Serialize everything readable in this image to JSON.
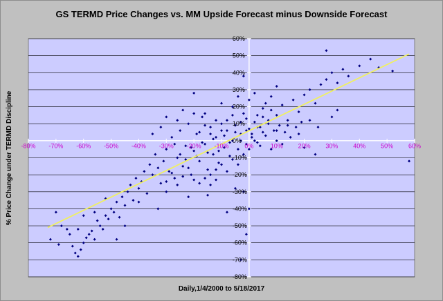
{
  "chart_data": {
    "type": "scatter",
    "title": "GS TERMD Price Changes vs. MM Upside Forecast minus Downside Forecast",
    "xlabel": "Daily,1/4/2000 to 5/18/2017",
    "ylabel": "% Price Change under TERMD Discipline",
    "xlim": [
      -0.8,
      0.6
    ],
    "ylim": [
      -0.8,
      0.6
    ],
    "x_ticks": [
      "-80%",
      "-70%",
      "-60%",
      "-50%",
      "-40%",
      "-30%",
      "-20%",
      "-10%",
      "0%",
      "10%",
      "20%",
      "30%",
      "40%",
      "50%",
      "60%"
    ],
    "y_ticks": [
      "60%",
      "50%",
      "40%",
      "30%",
      "20%",
      "10%",
      "0%",
      "-10%",
      "-20%",
      "-30%",
      "-40%",
      "-50%",
      "-60%",
      "-70%",
      "-80%"
    ],
    "grid": "horizontal",
    "colors": {
      "points": "#000080",
      "trendline": "#f0f060",
      "plot_bg": "#ccccff",
      "frame_bg": "#c0c0c0",
      "x_tick_labels": "#cc00cc"
    },
    "trendline": {
      "x": [
        -0.73,
        0.58
      ],
      "y": [
        -0.51,
        0.51
      ]
    },
    "series": [
      {
        "values": [
          [
            -0.72,
            -0.58
          ],
          [
            -0.7,
            -0.42
          ],
          [
            -0.69,
            -0.61
          ],
          [
            -0.68,
            -0.5
          ],
          [
            -0.66,
            -0.52
          ],
          [
            -0.65,
            -0.55
          ],
          [
            -0.64,
            -0.62
          ],
          [
            -0.63,
            -0.66
          ],
          [
            -0.62,
            -0.68
          ],
          [
            -0.61,
            -0.64
          ],
          [
            -0.6,
            -0.6
          ],
          [
            -0.59,
            -0.57
          ],
          [
            -0.58,
            -0.55
          ],
          [
            -0.57,
            -0.53
          ],
          [
            -0.56,
            -0.58
          ],
          [
            -0.55,
            -0.47
          ],
          [
            -0.54,
            -0.5
          ],
          [
            -0.53,
            -0.52
          ],
          [
            -0.52,
            -0.44
          ],
          [
            -0.51,
            -0.46
          ],
          [
            -0.5,
            -0.4
          ],
          [
            -0.49,
            -0.42
          ],
          [
            -0.48,
            -0.36
          ],
          [
            -0.47,
            -0.45
          ],
          [
            -0.46,
            -0.33
          ],
          [
            -0.45,
            -0.38
          ],
          [
            -0.44,
            -0.3
          ],
          [
            -0.43,
            -0.26
          ],
          [
            -0.42,
            -0.35
          ],
          [
            -0.41,
            -0.22
          ],
          [
            -0.4,
            -0.28
          ],
          [
            -0.39,
            -0.24
          ],
          [
            -0.38,
            -0.18
          ],
          [
            -0.37,
            -0.31
          ],
          [
            -0.36,
            -0.14
          ],
          [
            -0.35,
            -0.2
          ],
          [
            -0.34,
            -0.08
          ],
          [
            -0.33,
            -0.16
          ],
          [
            -0.32,
            -0.25
          ],
          [
            -0.31,
            -0.12
          ],
          [
            -0.3,
            -0.05
          ],
          [
            -0.29,
            -0.18
          ],
          [
            -0.28,
            0.02
          ],
          [
            -0.27,
            -0.22
          ],
          [
            -0.26,
            -0.1
          ],
          [
            -0.25,
            0.06
          ],
          [
            -0.24,
            -0.15
          ],
          [
            -0.23,
            -0.03
          ],
          [
            -0.22,
            0.1
          ],
          [
            -0.21,
            -0.2
          ],
          [
            -0.2,
            -0.06
          ],
          [
            -0.19,
            0.04
          ],
          [
            -0.18,
            -0.12
          ],
          [
            -0.17,
            0.14
          ],
          [
            -0.16,
            -0.02
          ],
          [
            -0.15,
            -0.17
          ],
          [
            -0.14,
            0.08
          ],
          [
            -0.13,
            -0.08
          ],
          [
            -0.12,
            0.02
          ],
          [
            -0.11,
            -0.13
          ],
          [
            -0.1,
            0.06
          ],
          [
            -0.09,
            -0.04
          ],
          [
            -0.08,
            0.12
          ],
          [
            -0.07,
            -0.09
          ],
          [
            -0.06,
            0.0
          ],
          [
            -0.05,
            0.09
          ],
          [
            -0.04,
            -0.05
          ],
          [
            -0.03,
            0.04
          ],
          [
            -0.02,
            0.16
          ],
          [
            -0.01,
            -0.02
          ],
          [
            0.0,
            0.07
          ],
          [
            0.01,
            0.02
          ],
          [
            0.02,
            0.11
          ],
          [
            0.03,
            -0.01
          ],
          [
            0.04,
            0.08
          ],
          [
            0.05,
            0.14
          ],
          [
            0.06,
            0.03
          ],
          [
            0.07,
            0.1
          ],
          [
            0.08,
            0.18
          ],
          [
            0.09,
            0.06
          ],
          [
            0.1,
            0.15
          ],
          [
            0.12,
            0.21
          ],
          [
            0.14,
            0.12
          ],
          [
            0.16,
            0.24
          ],
          [
            0.18,
            0.17
          ],
          [
            0.2,
            0.27
          ],
          [
            0.22,
            0.3
          ],
          [
            0.24,
            0.22
          ],
          [
            0.26,
            0.33
          ],
          [
            0.28,
            0.36
          ],
          [
            0.3,
            0.4
          ],
          [
            0.32,
            0.34
          ],
          [
            0.34,
            0.42
          ],
          [
            0.36,
            0.38
          ],
          [
            0.4,
            0.44
          ],
          [
            0.44,
            0.48
          ],
          [
            0.47,
            0.43
          ],
          [
            0.52,
            0.41
          ],
          [
            0.58,
            -0.12
          ],
          [
            0.28,
            0.53
          ],
          [
            -0.27,
            -0.02
          ],
          [
            -0.25,
            -0.08
          ],
          [
            -0.23,
            -0.11
          ],
          [
            -0.21,
            -0.04
          ],
          [
            -0.19,
            -0.09
          ],
          [
            -0.17,
            -0.01
          ],
          [
            -0.15,
            -0.07
          ],
          [
            -0.13,
            0.01
          ],
          [
            -0.11,
            -0.06
          ],
          [
            -0.09,
            0.03
          ],
          [
            -0.07,
            -0.01
          ],
          [
            -0.05,
            0.05
          ],
          [
            -0.03,
            0.0
          ],
          [
            -0.01,
            0.06
          ],
          [
            0.01,
            0.04
          ],
          [
            0.03,
            0.08
          ],
          [
            0.05,
            0.05
          ],
          [
            0.07,
            0.12
          ],
          [
            -0.18,
            0.05
          ],
          [
            -0.16,
            0.09
          ],
          [
            -0.14,
            -0.2
          ],
          [
            -0.12,
            -0.17
          ],
          [
            -0.1,
            -0.14
          ],
          [
            -0.08,
            -0.18
          ],
          [
            -0.06,
            -0.11
          ],
          [
            -0.04,
            -0.14
          ],
          [
            -0.02,
            -0.08
          ],
          [
            0.0,
            -0.05
          ],
          [
            0.02,
            0.0
          ],
          [
            0.04,
            -0.03
          ],
          [
            -0.3,
            -0.24
          ],
          [
            -0.28,
            -0.19
          ],
          [
            -0.26,
            -0.26
          ],
          [
            -0.24,
            -0.21
          ],
          [
            -0.22,
            -0.16
          ],
          [
            -0.2,
            -0.23
          ],
          [
            -0.18,
            -0.25
          ],
          [
            -0.16,
            -0.22
          ],
          [
            -0.14,
            -0.26
          ],
          [
            -0.12,
            -0.23
          ],
          [
            -0.35,
            0.04
          ],
          [
            -0.32,
            0.08
          ],
          [
            -0.3,
            0.14
          ],
          [
            -0.26,
            0.12
          ],
          [
            -0.24,
            0.18
          ],
          [
            -0.2,
            0.16
          ],
          [
            -0.1,
            0.22
          ],
          [
            -0.06,
            0.2
          ],
          [
            -0.04,
            0.26
          ],
          [
            0.0,
            0.24
          ],
          [
            0.02,
            0.28
          ],
          [
            0.06,
            0.22
          ],
          [
            0.08,
            0.26
          ],
          [
            0.11,
            0.09
          ],
          [
            0.13,
            0.05
          ],
          [
            0.15,
            0.02
          ],
          [
            0.17,
            0.08
          ],
          [
            0.19,
            0.11
          ],
          [
            0.12,
            -0.02
          ],
          [
            0.1,
            0.0
          ],
          [
            -0.02,
            0.38
          ],
          [
            0.1,
            0.32
          ],
          [
            -0.2,
            0.28
          ],
          [
            -0.05,
            -0.28
          ],
          [
            -0.02,
            -0.3
          ],
          [
            0.0,
            -0.4
          ],
          [
            -0.01,
            -0.55
          ],
          [
            -0.03,
            -0.7
          ],
          [
            -0.08,
            -0.42
          ],
          [
            -0.15,
            -0.32
          ],
          [
            -0.22,
            -0.33
          ],
          [
            -0.3,
            -0.3
          ],
          [
            -0.33,
            -0.4
          ],
          [
            -0.4,
            -0.36
          ],
          [
            -0.45,
            -0.5
          ],
          [
            -0.48,
            -0.58
          ],
          [
            -0.52,
            -0.34
          ],
          [
            -0.56,
            -0.42
          ],
          [
            -0.6,
            -0.44
          ],
          [
            -0.62,
            -0.52
          ],
          [
            0.08,
            -0.05
          ],
          [
            0.1,
            0.06
          ],
          [
            0.14,
            0.09
          ],
          [
            0.18,
            0.04
          ],
          [
            0.22,
            0.12
          ],
          [
            0.25,
            0.08
          ],
          [
            0.2,
            -0.04
          ],
          [
            0.24,
            -0.08
          ],
          [
            0.3,
            0.14
          ],
          [
            0.32,
            0.18
          ],
          [
            -0.06,
            0.15
          ],
          [
            -0.08,
            0.06
          ],
          [
            -0.1,
            0.1
          ],
          [
            -0.12,
            0.12
          ],
          [
            -0.14,
            0.04
          ],
          [
            -0.16,
            0.16
          ],
          [
            -0.03,
            0.11
          ],
          [
            -0.01,
            0.13
          ],
          [
            0.03,
            0.15
          ],
          [
            0.05,
            0.19
          ]
        ]
      }
    ]
  }
}
